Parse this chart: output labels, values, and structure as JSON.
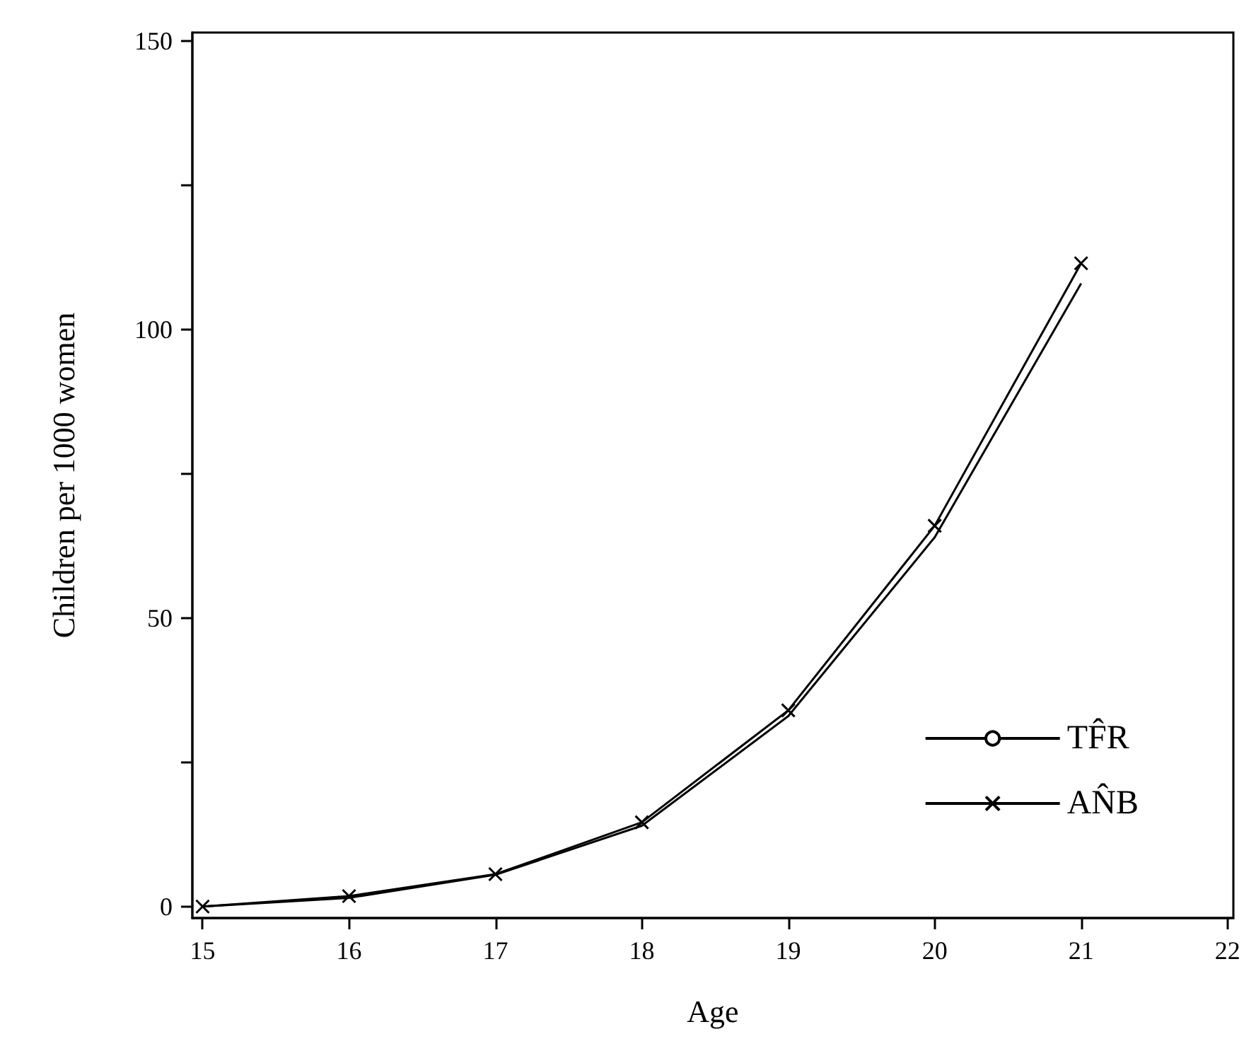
{
  "chart_data": {
    "type": "line",
    "xlabel": "Age",
    "ylabel": "Children per 1000 women",
    "x": [
      15,
      16,
      17,
      18,
      19,
      20,
      21
    ],
    "series": [
      {
        "name": "TF̂R",
        "color": "#000000",
        "marker": "none",
        "values": [
          0,
          1.5,
          5.5,
          14,
          33,
          64,
          108
        ]
      },
      {
        "name": "AN̂B",
        "color": "#000000",
        "marker": "cross",
        "values": [
          0,
          1.8,
          5.6,
          14.6,
          34,
          66,
          111.5
        ]
      }
    ],
    "xlim": [
      14.93,
      22.04
    ],
    "xticks": [
      15,
      16,
      17,
      18,
      19,
      20,
      21,
      22
    ],
    "ylim": [
      -2,
      151.5
    ],
    "yticks": [
      0,
      {
        "value": 25,
        "label": null
      },
      50,
      {
        "value": 75,
        "label": null
      },
      100,
      {
        "value": 125,
        "label": null
      },
      150
    ],
    "grid": false,
    "legend": "bottom right",
    "line_style": "solid"
  }
}
